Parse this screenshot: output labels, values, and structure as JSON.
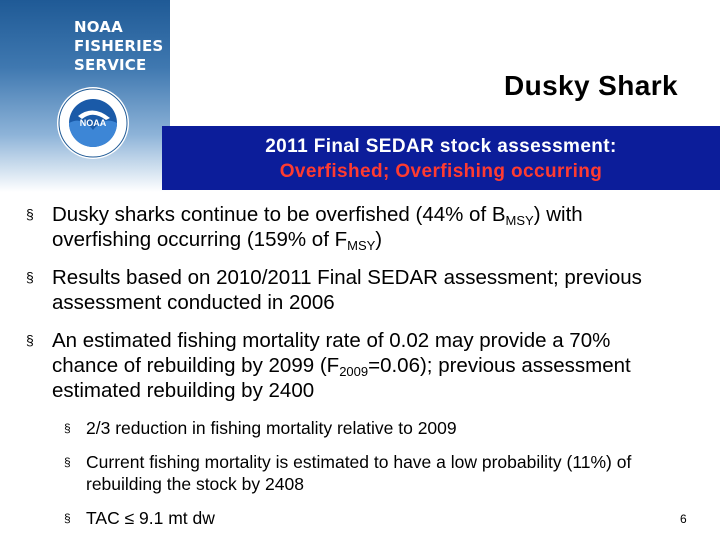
{
  "logo": {
    "line1": "NOAA",
    "line2": "FISHERIES",
    "line3": "SERVICE",
    "seal_center": "NOAA"
  },
  "title": "Dusky Shark",
  "banner": {
    "line1": "2011 Final SEDAR stock assessment:",
    "line2": "Overfished; Overfishing occurring"
  },
  "bullets": [
    {
      "t1": "Dusky sharks continue to be overfished (44% of B",
      "s1": "MSY",
      "t2": ") with overfishing occurring (159% of F",
      "s2": "MSY",
      "t3": ")"
    },
    {
      "text": "Results based on 2010/2011 Final SEDAR assessment; previous assessment conducted in 2006"
    },
    {
      "t1": "An estimated fishing mortality rate of 0.02 may provide a 70% chance of rebuilding by 2099 (F",
      "s1": "2009",
      "t2": "=0.06); previous assessment estimated rebuilding by 2400"
    }
  ],
  "sub_bullets": [
    "2/3 reduction in fishing mortality relative to 2009",
    "Current fishing mortality is estimated to have a low probability (11%) of rebuilding the stock by 2408",
    "TAC ≤ 9.1 mt dw"
  ],
  "marker": "§",
  "page_number": "6",
  "colors": {
    "banner_bg": "#0c1d9a",
    "banner_red": "#ff3b30",
    "panel_blue": "#1f5a96"
  }
}
